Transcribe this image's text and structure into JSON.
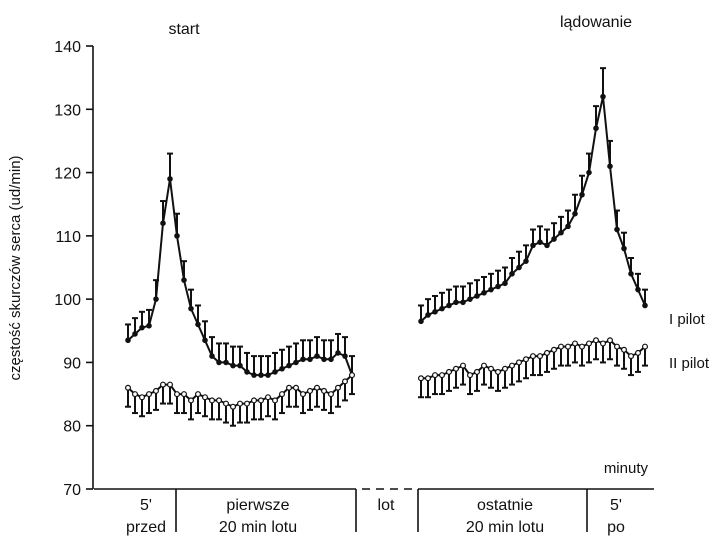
{
  "chart_data": {
    "type": "line",
    "title": "",
    "ylabel": "częstość skurczów serca (ud/min)",
    "xlabel": "minuty",
    "ylim": [
      70,
      140
    ],
    "yticks": [
      70,
      80,
      90,
      100,
      110,
      120,
      130,
      140
    ],
    "annotations": {
      "start": "start",
      "landing": "lądowanie"
    },
    "phases": [
      {
        "line1": "5'",
        "line2": "przed"
      },
      {
        "line1": "pierwsze",
        "line2": "20 min lotu"
      },
      {
        "line1": "lot",
        "line2": ""
      },
      {
        "line1": "ostatnie",
        "line2": "20 min lotu"
      },
      {
        "line1": "5'",
        "line2": "po"
      }
    ],
    "series": [
      {
        "name": "I pilot",
        "segments": [
          {
            "values": [
              93.5,
              94.5,
              95.5,
              95.8,
              100,
              112,
              119,
              110,
              103,
              98.5,
              96,
              93.5,
              91,
              90,
              90,
              89.5,
              89.5,
              88.5,
              88,
              88,
              88,
              88.5,
              89,
              89.5,
              90,
              90.5,
              90.5,
              91,
              90.5,
              90.5,
              91.5,
              91,
              88
            ],
            "errors": [
              2.5,
              2.5,
              2.5,
              2.5,
              3,
              3.5,
              4,
              3.5,
              3,
              3,
              3,
              3,
              3,
              3,
              3,
              3,
              3,
              3,
              3,
              3,
              3,
              3,
              3,
              3,
              3,
              3,
              3,
              3,
              3,
              3,
              3,
              3,
              3
            ]
          },
          {
            "values": [
              96.5,
              97.5,
              98,
              98.5,
              99,
              99.5,
              99.5,
              100,
              100.5,
              101,
              101.5,
              102,
              102.5,
              104,
              105,
              106,
              108.5,
              109,
              108.5,
              109.5,
              110.5,
              111.5,
              113.5,
              116.5,
              120,
              127,
              132,
              121,
              111,
              108,
              104,
              101.5,
              99
            ],
            "errors": [
              2.5,
              2.5,
              2.5,
              2.5,
              2.5,
              2.5,
              2.5,
              2.5,
              2.5,
              2.5,
              2.5,
              2.5,
              2.5,
              2.5,
              2.5,
              2.5,
              2.5,
              2.5,
              2.5,
              2.5,
              2.5,
              2.5,
              3,
              3,
              3,
              3.5,
              4.5,
              4,
              3,
              2.5,
              2.5,
              2.5,
              2.5
            ]
          }
        ]
      },
      {
        "name": "II pilot",
        "segments": [
          {
            "values": [
              86,
              85,
              84.5,
              85,
              85.5,
              86.5,
              86.5,
              85,
              85,
              84,
              85,
              84.5,
              84,
              84,
              83.5,
              83,
              83.5,
              83.5,
              84,
              84,
              84.5,
              84,
              85,
              86,
              86,
              85,
              85.5,
              86,
              85.5,
              85,
              86,
              87,
              88
            ],
            "errors": [
              3,
              3,
              3,
              3,
              3,
              3,
              3,
              3,
              3,
              3,
              3,
              3,
              3,
              3,
              3,
              3,
              3,
              3,
              3,
              3,
              3,
              3,
              3,
              3,
              3,
              3,
              3,
              3,
              3,
              3,
              3,
              3,
              3
            ]
          },
          {
            "values": [
              87.5,
              87.5,
              88,
              88,
              88.5,
              89,
              89.5,
              88,
              88.5,
              89.5,
              89,
              88.5,
              89,
              89.5,
              90,
              90.5,
              91,
              91,
              91.5,
              92,
              92.5,
              92.5,
              93,
              92.5,
              93,
              93.5,
              93,
              93.5,
              92.5,
              92,
              91,
              91.5,
              92.5
            ],
            "errors": [
              3,
              3,
              3,
              3,
              3,
              3,
              3,
              3,
              3,
              3,
              3,
              3,
              3,
              3,
              3,
              3,
              3,
              3,
              3,
              3,
              3,
              3,
              3,
              3,
              3,
              3,
              3,
              3,
              3,
              3,
              3,
              3,
              3
            ]
          }
        ]
      }
    ]
  },
  "colors": {
    "ink": "#111111",
    "background": "#ffffff"
  }
}
